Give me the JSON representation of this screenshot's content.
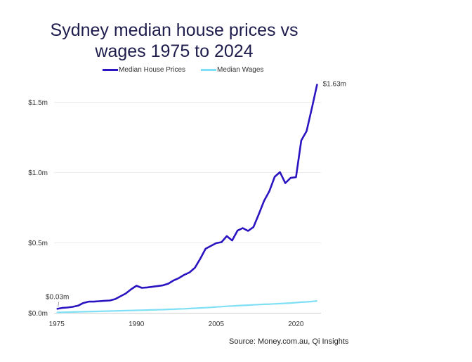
{
  "chart_data": {
    "type": "line",
    "title": "Sydney median house prices vs wages 1975 to 2024",
    "title_lines": [
      "Sydney median house prices vs",
      "wages 1975 to 2024"
    ],
    "xlabel": "",
    "ylabel": "",
    "xlim": [
      1975,
      2024
    ],
    "ylim": [
      0,
      1.63
    ],
    "x_ticks": [
      1975,
      1990,
      2005,
      2020
    ],
    "x_tick_labels": [
      "1975",
      "1990",
      "2005",
      "2020"
    ],
    "y_ticks": [
      0,
      0.5,
      1.0,
      1.5
    ],
    "y_tick_labels": [
      "$0.0m",
      "$0.5m",
      "$1.0m",
      "$1.5m"
    ],
    "grid": "horizontal",
    "legend": "top",
    "x": [
      1975,
      1976,
      1977,
      1978,
      1979,
      1980,
      1981,
      1982,
      1983,
      1984,
      1985,
      1986,
      1987,
      1988,
      1989,
      1990,
      1991,
      1992,
      1993,
      1994,
      1995,
      1996,
      1997,
      1998,
      1999,
      2000,
      2001,
      2002,
      2003,
      2004,
      2005,
      2006,
      2007,
      2008,
      2009,
      2010,
      2011,
      2012,
      2013,
      2014,
      2015,
      2016,
      2017,
      2018,
      2019,
      2020,
      2021,
      2022,
      2023,
      2024
    ],
    "series": [
      {
        "name": "Median House Prices",
        "color": "#2a14c2",
        "values": [
          0.03,
          0.037,
          0.04,
          0.045,
          0.053,
          0.072,
          0.082,
          0.082,
          0.085,
          0.088,
          0.09,
          0.1,
          0.12,
          0.14,
          0.17,
          0.195,
          0.18,
          0.183,
          0.188,
          0.193,
          0.198,
          0.21,
          0.233,
          0.25,
          0.273,
          0.29,
          0.323,
          0.387,
          0.458,
          0.478,
          0.498,
          0.505,
          0.548,
          0.517,
          0.587,
          0.605,
          0.585,
          0.612,
          0.703,
          0.798,
          0.868,
          0.97,
          1.003,
          0.925,
          0.962,
          0.967,
          1.228,
          1.295,
          1.46,
          1.63
        ]
      },
      {
        "name": "Median Wages",
        "color": "#7fdff5",
        "values": [
          0.005,
          0.006,
          0.007,
          0.008,
          0.009,
          0.01,
          0.011,
          0.012,
          0.013,
          0.014,
          0.015,
          0.016,
          0.017,
          0.018,
          0.019,
          0.02,
          0.021,
          0.022,
          0.023,
          0.024,
          0.025,
          0.027,
          0.028,
          0.03,
          0.031,
          0.033,
          0.035,
          0.037,
          0.039,
          0.041,
          0.044,
          0.046,
          0.049,
          0.051,
          0.053,
          0.055,
          0.057,
          0.059,
          0.061,
          0.063,
          0.064,
          0.066,
          0.068,
          0.07,
          0.072,
          0.075,
          0.078,
          0.08,
          0.083,
          0.087
        ]
      }
    ],
    "annotations": [
      {
        "text": "$0.03m",
        "x": 1975,
        "y": 0.03
      },
      {
        "text": "$1.63m",
        "x": 2024,
        "y": 1.63
      }
    ],
    "source": "Source: Money.com.au, Qi Insights"
  }
}
